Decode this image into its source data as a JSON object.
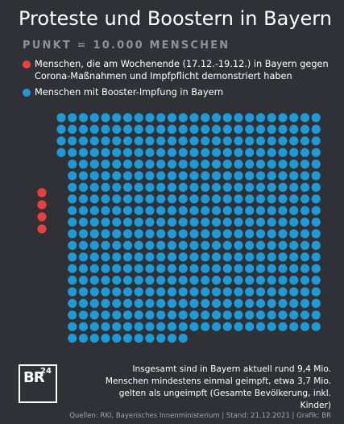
{
  "header": {
    "title": "Proteste und Boostern in Bayern",
    "subtitle": "PUNKT = 10.000 MENSCHEN"
  },
  "legend": [
    {
      "label": "Menschen, die am Wochenende (17.12.-19.12.) in Bayern gegen Corona-Maßnahmen und Impfpflicht demonstriert haben",
      "color": "#e8403c"
    },
    {
      "label": "Menschen mit Booster-Impfung in Bayern",
      "color": "#1e9ad6"
    }
  ],
  "chart_data": {
    "type": "unit-dot",
    "unit": "PUNKT = 10.000 MENSCHEN",
    "series": [
      {
        "name": "Menschen, die am Wochenende (17.12.-19.12.) in Bayern gegen Corona-Maßnahmen und Impfpflicht demonstriert haben",
        "dots": 4,
        "color": "#e8403c"
      },
      {
        "name": "Menschen mit Booster-Impfung in Bayern",
        "dots": 452,
        "color": "#1e9ad6"
      }
    ]
  },
  "logo": {
    "text": "BR",
    "sup": "24"
  },
  "note": "Insgesamt sind in Bayern aktuell rund 9,4 Mio. Menschen mindestens einmal geimpft, etwa 3,7 Mio. gelten als ungeimpft (Gesamte Bevölkerung, inkl. Kinder)",
  "footer": "Quellen: RKI, Bayerisches Innenministerium | Stand: 21.12.2021 | Grafik: BR"
}
